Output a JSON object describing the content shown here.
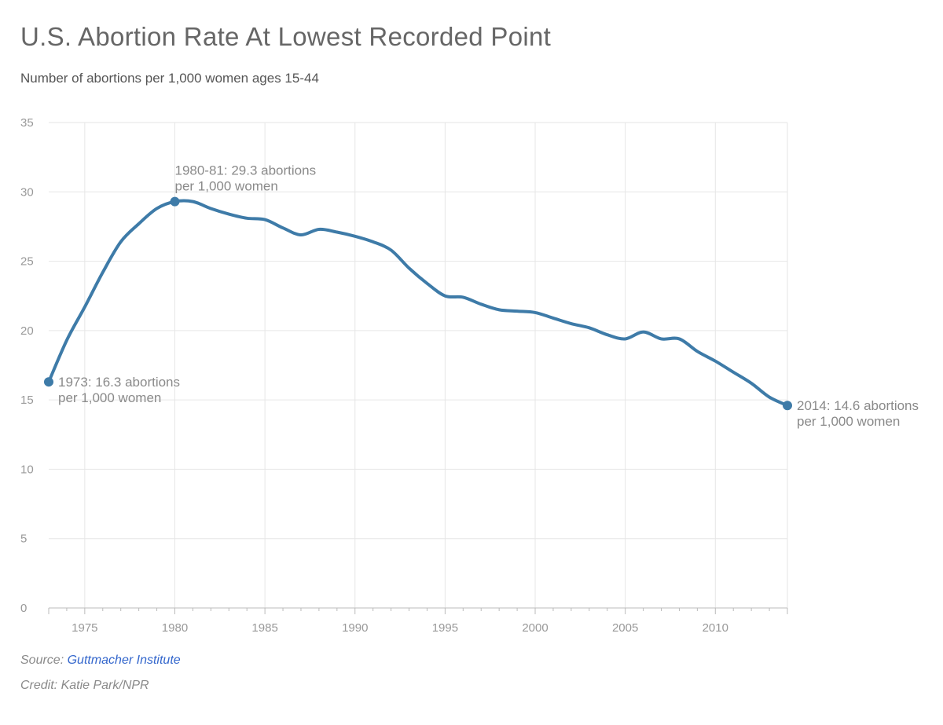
{
  "title": "U.S. Abortion Rate At Lowest Recorded Point",
  "subtitle": "Number of abortions per 1,000 women ages 15-44",
  "source_label": "Source: ",
  "source_name": "Guttmacher Institute",
  "credit": "Credit: Katie Park/NPR",
  "colors": {
    "line": "#3e7ba8",
    "grid": "#e6e6e6",
    "text": "#8a8a8a"
  },
  "chart_data": {
    "type": "line",
    "title": "U.S. Abortion Rate At Lowest Recorded Point",
    "subtitle": "Number of abortions per 1,000 women ages 15-44",
    "xlim": [
      1973,
      2014
    ],
    "ylim": [
      0,
      35
    ],
    "xticks": [
      "1975",
      "1980",
      "1985",
      "1990",
      "1995",
      "2000",
      "2005",
      "2010"
    ],
    "yticks": [
      "0",
      "5",
      "10",
      "15",
      "20",
      "25",
      "30",
      "35"
    ],
    "grid": true,
    "x": [
      1973,
      1974,
      1975,
      1976,
      1977,
      1978,
      1979,
      1980,
      1981,
      1982,
      1983,
      1984,
      1985,
      1986,
      1987,
      1988,
      1989,
      1990,
      1991,
      1992,
      1993,
      1994,
      1995,
      1996,
      1997,
      1998,
      1999,
      2000,
      2001,
      2002,
      2003,
      2004,
      2005,
      2006,
      2007,
      2008,
      2009,
      2010,
      2011,
      2012,
      2013,
      2014
    ],
    "y": [
      16.3,
      19.3,
      21.7,
      24.2,
      26.4,
      27.7,
      28.8,
      29.3,
      29.3,
      28.8,
      28.4,
      28.1,
      28.0,
      27.4,
      26.9,
      27.3,
      27.1,
      26.8,
      26.4,
      25.8,
      24.5,
      23.4,
      22.5,
      22.4,
      21.9,
      21.5,
      21.4,
      21.3,
      20.9,
      20.5,
      20.2,
      19.7,
      19.4,
      19.9,
      19.4,
      19.4,
      18.5,
      17.8,
      17.0,
      16.2,
      15.2,
      14.6
    ],
    "annotations": [
      {
        "x": 1973,
        "y": 16.3,
        "lines": [
          "1973: 16.3 abortions",
          "per 1,000 women"
        ],
        "position": "right"
      },
      {
        "x": 1980,
        "y": 29.3,
        "lines": [
          "1980-81: 29.3 abortions",
          "per 1,000 women"
        ],
        "position": "above"
      },
      {
        "x": 2014,
        "y": 14.6,
        "lines": [
          "2014: 14.6 abortions",
          "per 1,000 women"
        ],
        "position": "right"
      }
    ]
  }
}
